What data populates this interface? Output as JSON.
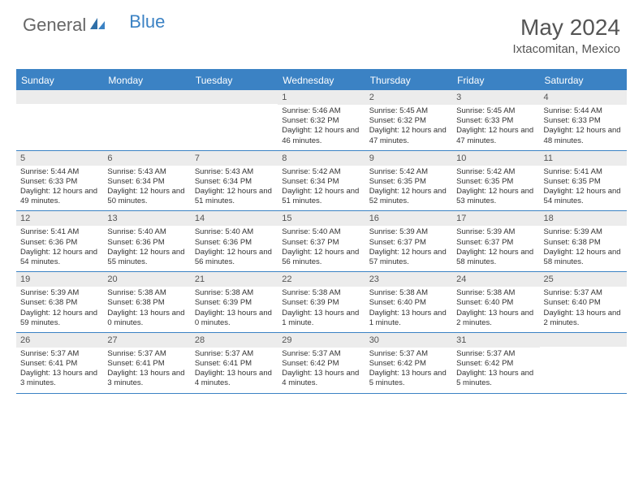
{
  "brand": {
    "part1": "General",
    "part2": "Blue"
  },
  "colors": {
    "accent": "#3b82c4",
    "header_text": "#ffffff",
    "daynum_bg": "#ececec",
    "text": "#333333",
    "title": "#555555"
  },
  "title": "May 2024",
  "location": "Ixtacomitan, Mexico",
  "day_names": [
    "Sunday",
    "Monday",
    "Tuesday",
    "Wednesday",
    "Thursday",
    "Friday",
    "Saturday"
  ],
  "weeks": [
    [
      {
        "n": "",
        "sr": "",
        "ss": "",
        "dl": ""
      },
      {
        "n": "",
        "sr": "",
        "ss": "",
        "dl": ""
      },
      {
        "n": "",
        "sr": "",
        "ss": "",
        "dl": ""
      },
      {
        "n": "1",
        "sr": "Sunrise: 5:46 AM",
        "ss": "Sunset: 6:32 PM",
        "dl": "Daylight: 12 hours and 46 minutes."
      },
      {
        "n": "2",
        "sr": "Sunrise: 5:45 AM",
        "ss": "Sunset: 6:32 PM",
        "dl": "Daylight: 12 hours and 47 minutes."
      },
      {
        "n": "3",
        "sr": "Sunrise: 5:45 AM",
        "ss": "Sunset: 6:33 PM",
        "dl": "Daylight: 12 hours and 47 minutes."
      },
      {
        "n": "4",
        "sr": "Sunrise: 5:44 AM",
        "ss": "Sunset: 6:33 PM",
        "dl": "Daylight: 12 hours and 48 minutes."
      }
    ],
    [
      {
        "n": "5",
        "sr": "Sunrise: 5:44 AM",
        "ss": "Sunset: 6:33 PM",
        "dl": "Daylight: 12 hours and 49 minutes."
      },
      {
        "n": "6",
        "sr": "Sunrise: 5:43 AM",
        "ss": "Sunset: 6:34 PM",
        "dl": "Daylight: 12 hours and 50 minutes."
      },
      {
        "n": "7",
        "sr": "Sunrise: 5:43 AM",
        "ss": "Sunset: 6:34 PM",
        "dl": "Daylight: 12 hours and 51 minutes."
      },
      {
        "n": "8",
        "sr": "Sunrise: 5:42 AM",
        "ss": "Sunset: 6:34 PM",
        "dl": "Daylight: 12 hours and 51 minutes."
      },
      {
        "n": "9",
        "sr": "Sunrise: 5:42 AM",
        "ss": "Sunset: 6:35 PM",
        "dl": "Daylight: 12 hours and 52 minutes."
      },
      {
        "n": "10",
        "sr": "Sunrise: 5:42 AM",
        "ss": "Sunset: 6:35 PM",
        "dl": "Daylight: 12 hours and 53 minutes."
      },
      {
        "n": "11",
        "sr": "Sunrise: 5:41 AM",
        "ss": "Sunset: 6:35 PM",
        "dl": "Daylight: 12 hours and 54 minutes."
      }
    ],
    [
      {
        "n": "12",
        "sr": "Sunrise: 5:41 AM",
        "ss": "Sunset: 6:36 PM",
        "dl": "Daylight: 12 hours and 54 minutes."
      },
      {
        "n": "13",
        "sr": "Sunrise: 5:40 AM",
        "ss": "Sunset: 6:36 PM",
        "dl": "Daylight: 12 hours and 55 minutes."
      },
      {
        "n": "14",
        "sr": "Sunrise: 5:40 AM",
        "ss": "Sunset: 6:36 PM",
        "dl": "Daylight: 12 hours and 56 minutes."
      },
      {
        "n": "15",
        "sr": "Sunrise: 5:40 AM",
        "ss": "Sunset: 6:37 PM",
        "dl": "Daylight: 12 hours and 56 minutes."
      },
      {
        "n": "16",
        "sr": "Sunrise: 5:39 AM",
        "ss": "Sunset: 6:37 PM",
        "dl": "Daylight: 12 hours and 57 minutes."
      },
      {
        "n": "17",
        "sr": "Sunrise: 5:39 AM",
        "ss": "Sunset: 6:37 PM",
        "dl": "Daylight: 12 hours and 58 minutes."
      },
      {
        "n": "18",
        "sr": "Sunrise: 5:39 AM",
        "ss": "Sunset: 6:38 PM",
        "dl": "Daylight: 12 hours and 58 minutes."
      }
    ],
    [
      {
        "n": "19",
        "sr": "Sunrise: 5:39 AM",
        "ss": "Sunset: 6:38 PM",
        "dl": "Daylight: 12 hours and 59 minutes."
      },
      {
        "n": "20",
        "sr": "Sunrise: 5:38 AM",
        "ss": "Sunset: 6:38 PM",
        "dl": "Daylight: 13 hours and 0 minutes."
      },
      {
        "n": "21",
        "sr": "Sunrise: 5:38 AM",
        "ss": "Sunset: 6:39 PM",
        "dl": "Daylight: 13 hours and 0 minutes."
      },
      {
        "n": "22",
        "sr": "Sunrise: 5:38 AM",
        "ss": "Sunset: 6:39 PM",
        "dl": "Daylight: 13 hours and 1 minute."
      },
      {
        "n": "23",
        "sr": "Sunrise: 5:38 AM",
        "ss": "Sunset: 6:40 PM",
        "dl": "Daylight: 13 hours and 1 minute."
      },
      {
        "n": "24",
        "sr": "Sunrise: 5:38 AM",
        "ss": "Sunset: 6:40 PM",
        "dl": "Daylight: 13 hours and 2 minutes."
      },
      {
        "n": "25",
        "sr": "Sunrise: 5:37 AM",
        "ss": "Sunset: 6:40 PM",
        "dl": "Daylight: 13 hours and 2 minutes."
      }
    ],
    [
      {
        "n": "26",
        "sr": "Sunrise: 5:37 AM",
        "ss": "Sunset: 6:41 PM",
        "dl": "Daylight: 13 hours and 3 minutes."
      },
      {
        "n": "27",
        "sr": "Sunrise: 5:37 AM",
        "ss": "Sunset: 6:41 PM",
        "dl": "Daylight: 13 hours and 3 minutes."
      },
      {
        "n": "28",
        "sr": "Sunrise: 5:37 AM",
        "ss": "Sunset: 6:41 PM",
        "dl": "Daylight: 13 hours and 4 minutes."
      },
      {
        "n": "29",
        "sr": "Sunrise: 5:37 AM",
        "ss": "Sunset: 6:42 PM",
        "dl": "Daylight: 13 hours and 4 minutes."
      },
      {
        "n": "30",
        "sr": "Sunrise: 5:37 AM",
        "ss": "Sunset: 6:42 PM",
        "dl": "Daylight: 13 hours and 5 minutes."
      },
      {
        "n": "31",
        "sr": "Sunrise: 5:37 AM",
        "ss": "Sunset: 6:42 PM",
        "dl": "Daylight: 13 hours and 5 minutes."
      },
      {
        "n": "",
        "sr": "",
        "ss": "",
        "dl": ""
      }
    ]
  ]
}
